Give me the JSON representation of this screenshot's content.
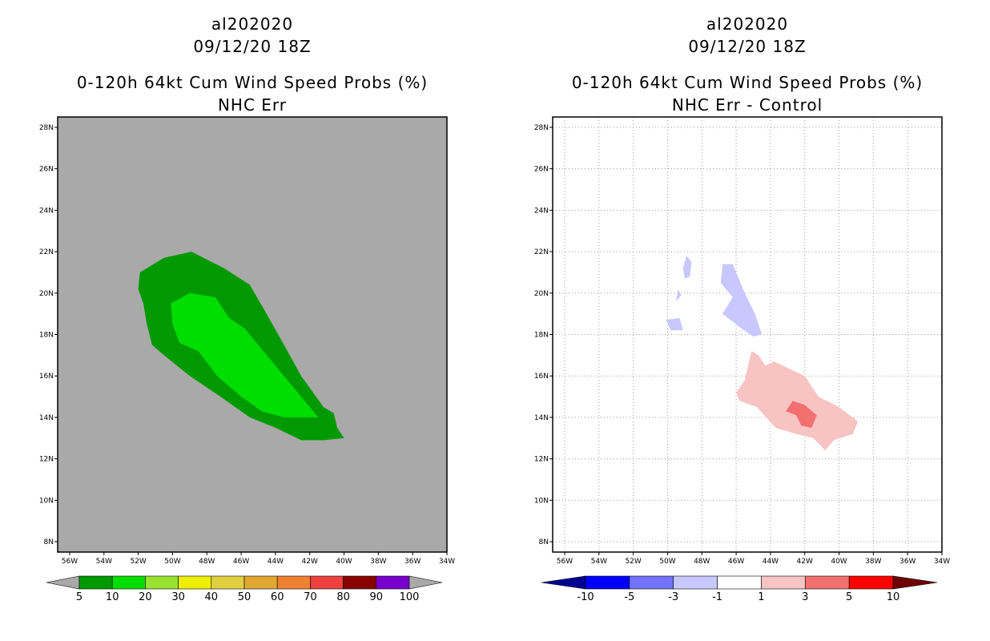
{
  "chart_data": [
    {
      "type": "heatmap",
      "panel": "left",
      "title": [
        "al202020",
        "09/12/20 18Z",
        "0-120h 64kt Cum Wind Speed Probs (%)",
        "NHC Err"
      ],
      "x_ticks": [
        "56W",
        "54W",
        "52W",
        "50W",
        "48W",
        "46W",
        "44W",
        "42W",
        "40W",
        "38W",
        "36W",
        "34W"
      ],
      "y_ticks": [
        "28N",
        "26N",
        "24N",
        "22N",
        "20N",
        "18N",
        "16N",
        "14N",
        "12N",
        "10N",
        "8N"
      ],
      "xlim_lon": [
        -56.7,
        -34
      ],
      "ylim_lat": [
        7.5,
        28.5
      ],
      "background_color": "#a9a9a9",
      "contours": [
        {
          "level": "5-10",
          "color": "#009900",
          "polygon_lonlat": [
            [
              -51.9,
              21.0
            ],
            [
              -50.5,
              21.7
            ],
            [
              -48.9,
              22.0
            ],
            [
              -47.0,
              21.2
            ],
            [
              -45.5,
              20.4
            ],
            [
              -44.8,
              19.4
            ],
            [
              -43.5,
              17.5
            ],
            [
              -42.5,
              16.0
            ],
            [
              -41.2,
              14.5
            ],
            [
              -40.6,
              14.2
            ],
            [
              -40.4,
              13.5
            ],
            [
              -40.0,
              13.0
            ],
            [
              -41.2,
              12.9
            ],
            [
              -42.5,
              12.9
            ],
            [
              -44.0,
              13.5
            ],
            [
              -45.5,
              14.0
            ],
            [
              -47.2,
              15.0
            ],
            [
              -49.0,
              16.0
            ],
            [
              -50.5,
              17.0
            ],
            [
              -51.2,
              17.5
            ],
            [
              -51.5,
              18.5
            ],
            [
              -51.7,
              19.5
            ],
            [
              -52.0,
              20.2
            ]
          ]
        },
        {
          "level": "10-20",
          "color": "#00dd00",
          "polygon_lonlat": [
            [
              -50.1,
              19.5
            ],
            [
              -49.0,
              20.0
            ],
            [
              -47.5,
              19.8
            ],
            [
              -46.7,
              18.8
            ],
            [
              -45.8,
              18.3
            ],
            [
              -44.7,
              17.2
            ],
            [
              -43.5,
              16.0
            ],
            [
              -42.5,
              15.0
            ],
            [
              -41.5,
              14.0
            ],
            [
              -43.5,
              14.0
            ],
            [
              -44.8,
              14.3
            ],
            [
              -46.0,
              15.0
            ],
            [
              -47.4,
              16.0
            ],
            [
              -48.5,
              17.2
            ],
            [
              -49.6,
              17.6
            ],
            [
              -50.0,
              18.5
            ]
          ]
        }
      ],
      "colorbar": {
        "labels": [
          "5",
          "10",
          "20",
          "30",
          "40",
          "50",
          "60",
          "70",
          "80",
          "90",
          "100"
        ],
        "colors": [
          "#009900",
          "#00dd00",
          "#99e232",
          "#eeee00",
          "#e0d040",
          "#e0a832",
          "#ef8232",
          "#ef4040",
          "#880000",
          "#7700cc"
        ],
        "end_color_low": "#a9a9a9",
        "end_color_high": "#a9a9a9"
      }
    },
    {
      "type": "heatmap",
      "panel": "right",
      "title": [
        "al202020",
        "09/12/20 18Z",
        "0-120h 64kt Cum Wind Speed Probs (%)",
        "NHC Err - Control"
      ],
      "x_ticks": [
        "56W",
        "54W",
        "52W",
        "50W",
        "48W",
        "46W",
        "44W",
        "42W",
        "40W",
        "38W",
        "36W",
        "34W"
      ],
      "y_ticks": [
        "28N",
        "26N",
        "24N",
        "22N",
        "20N",
        "18N",
        "16N",
        "14N",
        "12N",
        "10N",
        "8N"
      ],
      "xlim_lon": [
        -56.7,
        -34
      ],
      "ylim_lat": [
        7.5,
        28.5
      ],
      "background_color": "#ffffff",
      "grid": true,
      "contours": [
        {
          "level": "-3 to -1",
          "color": "#c8c8ff",
          "polygon_lonlat": [
            [
              -46.8,
              21.4
            ],
            [
              -46.2,
              21.4
            ],
            [
              -45.5,
              20.0
            ],
            [
              -44.9,
              19.0
            ],
            [
              -44.5,
              18.0
            ],
            [
              -45.0,
              17.9
            ],
            [
              -45.7,
              18.3
            ],
            [
              -46.8,
              19.0
            ],
            [
              -46.2,
              19.8
            ],
            [
              -46.9,
              20.5
            ]
          ]
        },
        {
          "level": "-3 to -1",
          "color": "#c8c8ff",
          "polygon_lonlat": [
            [
              -48.9,
              21.8
            ],
            [
              -48.6,
              21.5
            ],
            [
              -48.7,
              20.8
            ],
            [
              -49.0,
              20.7
            ],
            [
              -49.1,
              21.2
            ]
          ]
        },
        {
          "level": "-3 to -1",
          "color": "#c8c8ff",
          "polygon_lonlat": [
            [
              -50.1,
              18.7
            ],
            [
              -49.3,
              18.8
            ],
            [
              -49.1,
              18.2
            ],
            [
              -49.8,
              18.2
            ]
          ]
        },
        {
          "level": "-3 to -1",
          "color": "#c8c8ff",
          "polygon_lonlat": [
            [
              -49.4,
              20.2
            ],
            [
              -49.2,
              19.9
            ],
            [
              -49.5,
              19.6
            ]
          ]
        },
        {
          "level": "1-3",
          "color": "#f7c3c3",
          "polygon_lonlat": [
            [
              -45.1,
              17.2
            ],
            [
              -44.7,
              17.0
            ],
            [
              -44.3,
              16.5
            ],
            [
              -43.8,
              16.7
            ],
            [
              -42.0,
              16.0
            ],
            [
              -41.2,
              15.0
            ],
            [
              -40.0,
              14.5
            ],
            [
              -38.9,
              13.8
            ],
            [
              -39.2,
              13.2
            ],
            [
              -40.3,
              12.9
            ],
            [
              -40.8,
              12.4
            ],
            [
              -41.5,
              13.0
            ],
            [
              -42.5,
              13.2
            ],
            [
              -43.7,
              13.5
            ],
            [
              -44.8,
              14.5
            ],
            [
              -45.8,
              14.8
            ],
            [
              -46.0,
              15.2
            ],
            [
              -45.5,
              15.8
            ],
            [
              -45.3,
              16.5
            ]
          ]
        },
        {
          "level": "3-5",
          "color": "#f27070",
          "polygon_lonlat": [
            [
              -42.7,
              14.8
            ],
            [
              -42.0,
              14.6
            ],
            [
              -41.3,
              14.1
            ],
            [
              -41.6,
              13.5
            ],
            [
              -42.2,
              13.6
            ],
            [
              -42.5,
              14.1
            ],
            [
              -43.1,
              14.3
            ]
          ]
        }
      ],
      "colorbar": {
        "labels": [
          "-10",
          "-5",
          "-3",
          "-1",
          "1",
          "3",
          "5",
          "10"
        ],
        "colors": [
          "#0000ff",
          "#7373ff",
          "#c8c8ff",
          "#ffffff",
          "#f7c3c3",
          "#f27070",
          "#ff0000"
        ],
        "end_color_low": "#000090",
        "end_color_high": "#700000"
      }
    }
  ]
}
